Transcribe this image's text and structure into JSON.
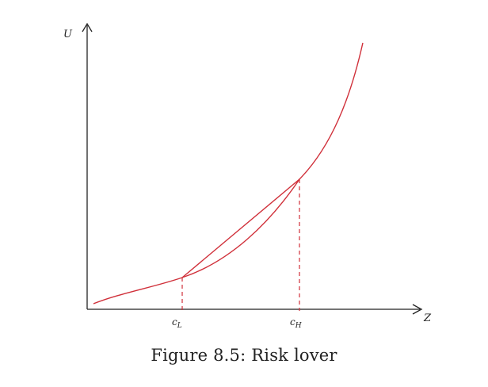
{
  "diagram": {
    "y_axis_label": "U",
    "x_axis_label": "Z",
    "points": [
      {
        "id": "low",
        "base": "c",
        "sub": "L"
      },
      {
        "id": "high",
        "base": "c",
        "sub": "H"
      }
    ],
    "colors": {
      "curve": "#d0303a",
      "chord": "#d0303a",
      "guides": "#d0303a",
      "axes": "#222222"
    },
    "curve_shape": "convex"
  },
  "caption": "Figure 8.5: Risk lover"
}
